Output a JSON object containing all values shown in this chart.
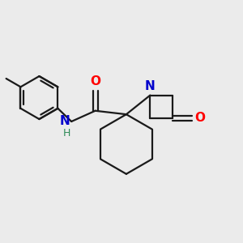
{
  "background_color": "#ebebeb",
  "bond_color": "#1a1a1a",
  "atom_colors": {
    "O": "#ff0000",
    "N": "#0000cc",
    "H": "#2e8b57",
    "C": "#1a1a1a"
  },
  "figsize": [
    3.0,
    3.0
  ],
  "dpi": 100
}
